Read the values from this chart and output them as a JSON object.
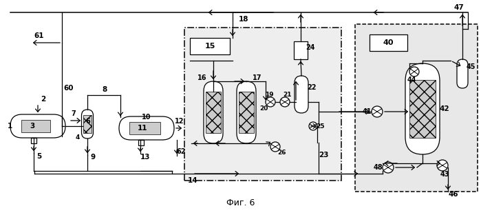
{
  "title": "Фиг. 6",
  "bg": "#ffffff",
  "fw": 6.99,
  "fh": 3.12,
  "dpi": 100
}
